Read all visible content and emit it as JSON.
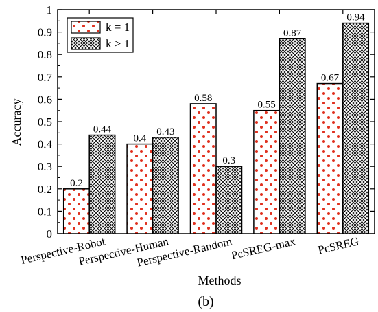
{
  "chart_data": {
    "type": "bar",
    "categories": [
      "Perspective-Robot",
      "Perspective-Human",
      "Perspective-Random",
      "PcSREG-max",
      "PcSREG"
    ],
    "series": [
      {
        "name": "k = 1",
        "values": [
          0.2,
          0.4,
          0.58,
          0.55,
          0.67
        ],
        "labels": [
          "0.2",
          "0.4",
          "0.58",
          "0.55",
          "0.67"
        ],
        "pattern": "red-dots"
      },
      {
        "name": "k > 1",
        "values": [
          0.44,
          0.43,
          0.3,
          0.87,
          0.94
        ],
        "labels": [
          "0.44",
          "0.43",
          "0.3",
          "0.87",
          "0.94"
        ],
        "pattern": "crosshatch"
      }
    ],
    "xlabel": "Methods",
    "ylabel": "Accuracy",
    "ylim": [
      0,
      1
    ],
    "yticks": [
      0,
      0.1,
      0.2,
      0.3,
      0.4,
      0.5,
      0.6,
      0.7,
      0.8,
      0.9,
      1
    ],
    "ytick_labels": [
      "0",
      "0.1",
      "0.2",
      "0.3",
      "0.4",
      "0.5",
      "0.6",
      "0.7",
      "0.8",
      "0.9",
      "1"
    ],
    "legend_position": "top-left",
    "grid": false,
    "caption": "(b)",
    "colors": {
      "dot": "#e0301e",
      "hatch": "#000000",
      "bar_fill": "#ffffff"
    }
  }
}
